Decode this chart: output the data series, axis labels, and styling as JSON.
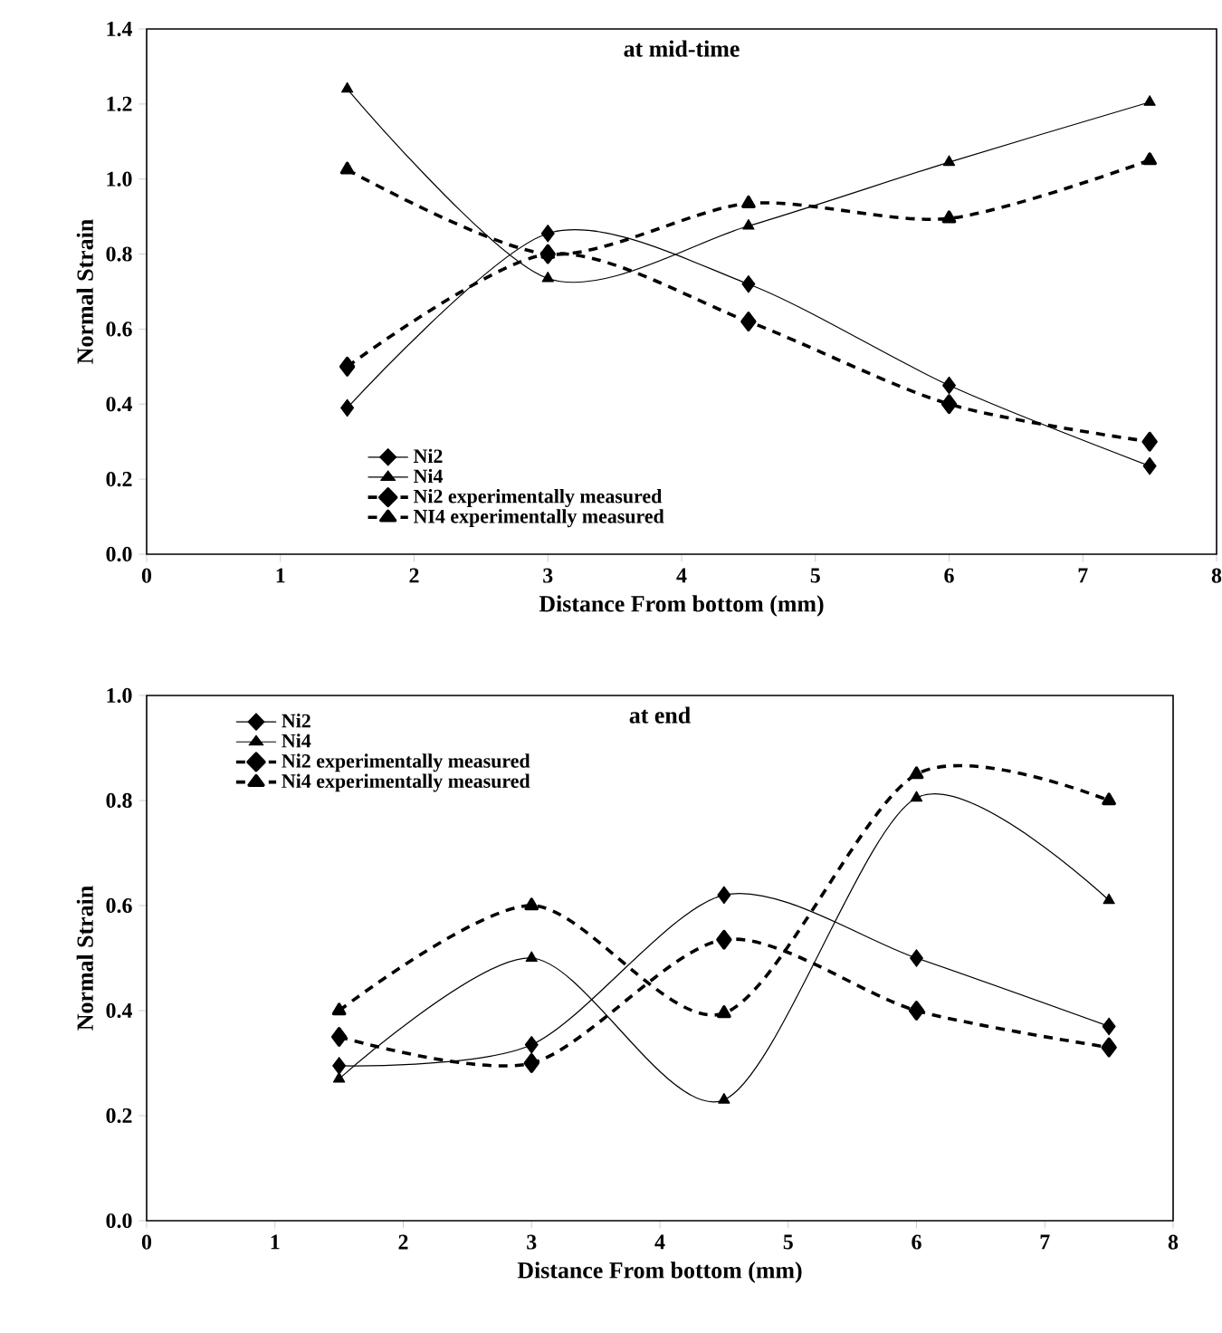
{
  "chart_data": [
    {
      "type": "line",
      "title": "at mid-time",
      "xlabel": "Distance From bottom (mm)",
      "ylabel": "Normal Strain",
      "x": [
        1.5,
        3,
        4.5,
        6,
        7.5
      ],
      "series": [
        {
          "name": "Ni2",
          "color": "#000000",
          "marker": "diamond",
          "line_style": "solid",
          "values": [
            0.39,
            0.855,
            0.72,
            0.45,
            0.235
          ]
        },
        {
          "name": "Ni4",
          "color": "#000000",
          "marker": "triangle",
          "line_style": "solid",
          "values": [
            1.24,
            0.735,
            0.875,
            1.045,
            1.205
          ]
        },
        {
          "name": "Ni2 experimentally measured",
          "color": "#000000",
          "marker": "diamond",
          "line_style": "dashed",
          "values": [
            0.5,
            0.8,
            0.62,
            0.4,
            0.3
          ]
        },
        {
          "name": "NI4 experimentally measured",
          "color": "#000000",
          "marker": "triangle",
          "line_style": "dashed",
          "values": [
            1.025,
            0.8,
            0.935,
            0.895,
            1.05
          ]
        }
      ],
      "xlim": [
        0,
        8
      ],
      "xticks": [
        0,
        1,
        2,
        3,
        4,
        5,
        6,
        7,
        8
      ],
      "ylim": [
        0,
        1.4
      ],
      "yticks": [
        {
          "value": 0,
          "label": "0.0"
        },
        {
          "value": 0.2,
          "label": "0.2"
        },
        {
          "value": 0.4,
          "label": "0.4"
        },
        {
          "value": 0.6,
          "label": "0.6"
        },
        {
          "value": 0.8,
          "label": "0.8"
        },
        {
          "value": 1,
          "label": "1.0"
        },
        {
          "value": 1.2,
          "label": "1.2"
        },
        {
          "value": 1.4,
          "label": "1.4"
        }
      ],
      "grid": false,
      "legend": "bottom left"
    },
    {
      "type": "line",
      "title": "at end",
      "xlabel": "Distance From bottom (mm)",
      "ylabel": "Normal Strain",
      "x": [
        1.5,
        3,
        4.5,
        6,
        7.5
      ],
      "series": [
        {
          "name": "Ni2",
          "color": "#000000",
          "marker": "diamond",
          "line_style": "solid",
          "values": [
            0.295,
            0.335,
            0.62,
            0.5,
            0.37
          ]
        },
        {
          "name": "Ni4",
          "color": "#000000",
          "marker": "triangle",
          "line_style": "solid",
          "values": [
            0.27,
            0.5,
            0.23,
            0.805,
            0.61
          ]
        },
        {
          "name": "Ni2 experimentally measured",
          "color": "#000000",
          "marker": "diamond",
          "line_style": "dashed",
          "values": [
            0.35,
            0.3,
            0.535,
            0.4,
            0.33
          ]
        },
        {
          "name": "Ni4 experimentally measured",
          "color": "#000000",
          "marker": "triangle",
          "line_style": "dashed",
          "values": [
            0.4,
            0.6,
            0.395,
            0.85,
            0.8
          ]
        }
      ],
      "xlim": [
        0,
        8
      ],
      "xticks": [
        0,
        1,
        2,
        3,
        4,
        5,
        6,
        7,
        8
      ],
      "ylim": [
        0,
        1
      ],
      "yticks": [
        {
          "value": 0,
          "label": "0.0"
        },
        {
          "value": 0.2,
          "label": "0.2"
        },
        {
          "value": 0.4,
          "label": "0.4"
        },
        {
          "value": 0.6,
          "label": "0.6"
        },
        {
          "value": 0.8,
          "label": "0.8"
        },
        {
          "value": 1,
          "label": "1.0"
        }
      ],
      "grid": false,
      "legend": "top left"
    }
  ]
}
